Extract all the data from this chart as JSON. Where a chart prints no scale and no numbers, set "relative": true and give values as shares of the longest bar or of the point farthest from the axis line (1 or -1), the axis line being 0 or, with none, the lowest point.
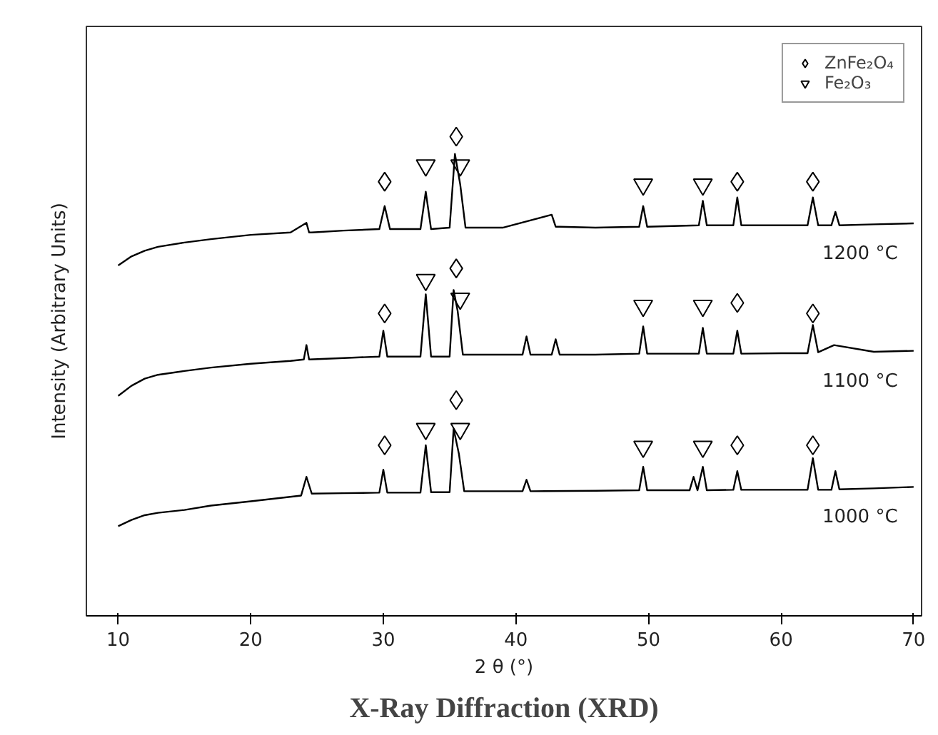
{
  "chart_data": {
    "type": "line",
    "title": "X-Ray Diffraction (XRD)",
    "xlabel": "2 θ (°)",
    "ylabel": "Intensity (Arbitrary Units)",
    "relative": true,
    "xlim": [
      7.6,
      70.6
    ],
    "xticks": [
      10,
      20,
      30,
      40,
      50,
      60,
      70
    ],
    "tick_labels": "x",
    "grid": false,
    "legend": "top right",
    "series": [
      {
        "name": "1200 °C",
        "color": "#000000",
        "marker": "none",
        "x": [
          10,
          11,
          12,
          13,
          15,
          17,
          20,
          23,
          24.2,
          24.4,
          24.6,
          27,
          29.7,
          30.1,
          30.5,
          32.8,
          33.2,
          33.6,
          35.0,
          35.4,
          35.8,
          36.2,
          39,
          42.7,
          43.0,
          43.3,
          46,
          49.3,
          49.6,
          49.9,
          53.8,
          54.1,
          54.4,
          56.4,
          56.7,
          57.0,
          60,
          62.0,
          62.4,
          62.8,
          63.8,
          64.1,
          64.4,
          67,
          70
        ],
        "values": [
          0.731,
          0.75,
          0.762,
          0.77,
          0.779,
          0.786,
          0.795,
          0.8,
          0.82,
          0.8,
          0.8,
          0.804,
          0.807,
          0.855,
          0.807,
          0.807,
          0.885,
          0.807,
          0.81,
          0.964,
          0.9,
          0.81,
          0.81,
          0.837,
          0.812,
          0.812,
          0.81,
          0.812,
          0.855,
          0.812,
          0.815,
          0.866,
          0.815,
          0.815,
          0.873,
          0.815,
          0.815,
          0.815,
          0.873,
          0.815,
          0.815,
          0.843,
          0.815,
          0.817,
          0.819
        ]
      },
      {
        "name": "1100 °C",
        "color": "#000000",
        "marker": "none",
        "x": [
          10,
          11,
          12,
          13,
          15,
          17,
          20,
          23,
          24.0,
          24.2,
          24.4,
          27,
          29.7,
          30.0,
          30.3,
          32.8,
          33.2,
          33.6,
          35.0,
          35.3,
          35.6,
          36.0,
          39,
          40.5,
          40.8,
          41.1,
          42.7,
          43.0,
          43.3,
          46,
          49.3,
          49.6,
          49.9,
          53.8,
          54.1,
          54.4,
          56.4,
          56.7,
          57.0,
          60,
          62.0,
          62.4,
          62.8,
          64.0,
          67,
          70
        ],
        "values": [
          0.459,
          0.48,
          0.495,
          0.503,
          0.511,
          0.518,
          0.526,
          0.532,
          0.535,
          0.565,
          0.535,
          0.538,
          0.541,
          0.595,
          0.541,
          0.541,
          0.671,
          0.541,
          0.541,
          0.68,
          0.637,
          0.545,
          0.545,
          0.545,
          0.583,
          0.545,
          0.545,
          0.577,
          0.545,
          0.545,
          0.547,
          0.604,
          0.547,
          0.547,
          0.601,
          0.547,
          0.547,
          0.595,
          0.547,
          0.548,
          0.548,
          0.607,
          0.55,
          0.565,
          0.551,
          0.553
        ]
      },
      {
        "name": "1000 °C",
        "color": "#000000",
        "marker": "none",
        "x": [
          10,
          11,
          12,
          13,
          15,
          17,
          20,
          23.8,
          24.2,
          24.6,
          27,
          29.7,
          30.0,
          30.3,
          32.8,
          33.2,
          33.6,
          35.0,
          35.3,
          35.7,
          36.1,
          39,
          40.5,
          40.8,
          41.1,
          46,
          49.3,
          49.6,
          49.9,
          53.1,
          53.4,
          53.7,
          54.1,
          54.4,
          56.4,
          56.7,
          57.0,
          60,
          62.0,
          62.4,
          62.8,
          63.8,
          64.1,
          64.4,
          67,
          70
        ],
        "values": [
          0.187,
          0.2,
          0.21,
          0.215,
          0.221,
          0.23,
          0.239,
          0.251,
          0.29,
          0.255,
          0.256,
          0.257,
          0.305,
          0.257,
          0.257,
          0.356,
          0.258,
          0.258,
          0.39,
          0.338,
          0.26,
          0.26,
          0.26,
          0.284,
          0.26,
          0.261,
          0.262,
          0.311,
          0.262,
          0.262,
          0.29,
          0.262,
          0.311,
          0.262,
          0.263,
          0.302,
          0.263,
          0.263,
          0.263,
          0.329,
          0.263,
          0.263,
          0.302,
          0.264,
          0.266,
          0.269
        ]
      },
      {
        "name": "ZnFe₂O₄",
        "type": "scatter",
        "color": "#000000",
        "marker": "diamond",
        "x": [
          30.1,
          35.5,
          56.7,
          62.4,
          30.1,
          35.5,
          56.7,
          62.4,
          30.1,
          35.5,
          56.7,
          62.4
        ],
        "values": [
          0.906,
          1.0,
          0.906,
          0.906,
          0.631,
          0.725,
          0.653,
          0.631,
          0.356,
          0.45,
          0.356,
          0.356
        ]
      },
      {
        "name": "Fe₂O₃",
        "type": "scatter",
        "color": "#000000",
        "marker": "triangle",
        "x": [
          33.2,
          35.8,
          49.6,
          54.1,
          33.2,
          35.8,
          49.6,
          54.1,
          33.2,
          35.8,
          49.6,
          54.1
        ],
        "values": [
          0.94,
          0.94,
          0.9,
          0.9,
          0.701,
          0.662,
          0.647,
          0.647,
          0.39,
          0.39,
          0.353,
          0.353
        ]
      }
    ]
  }
}
